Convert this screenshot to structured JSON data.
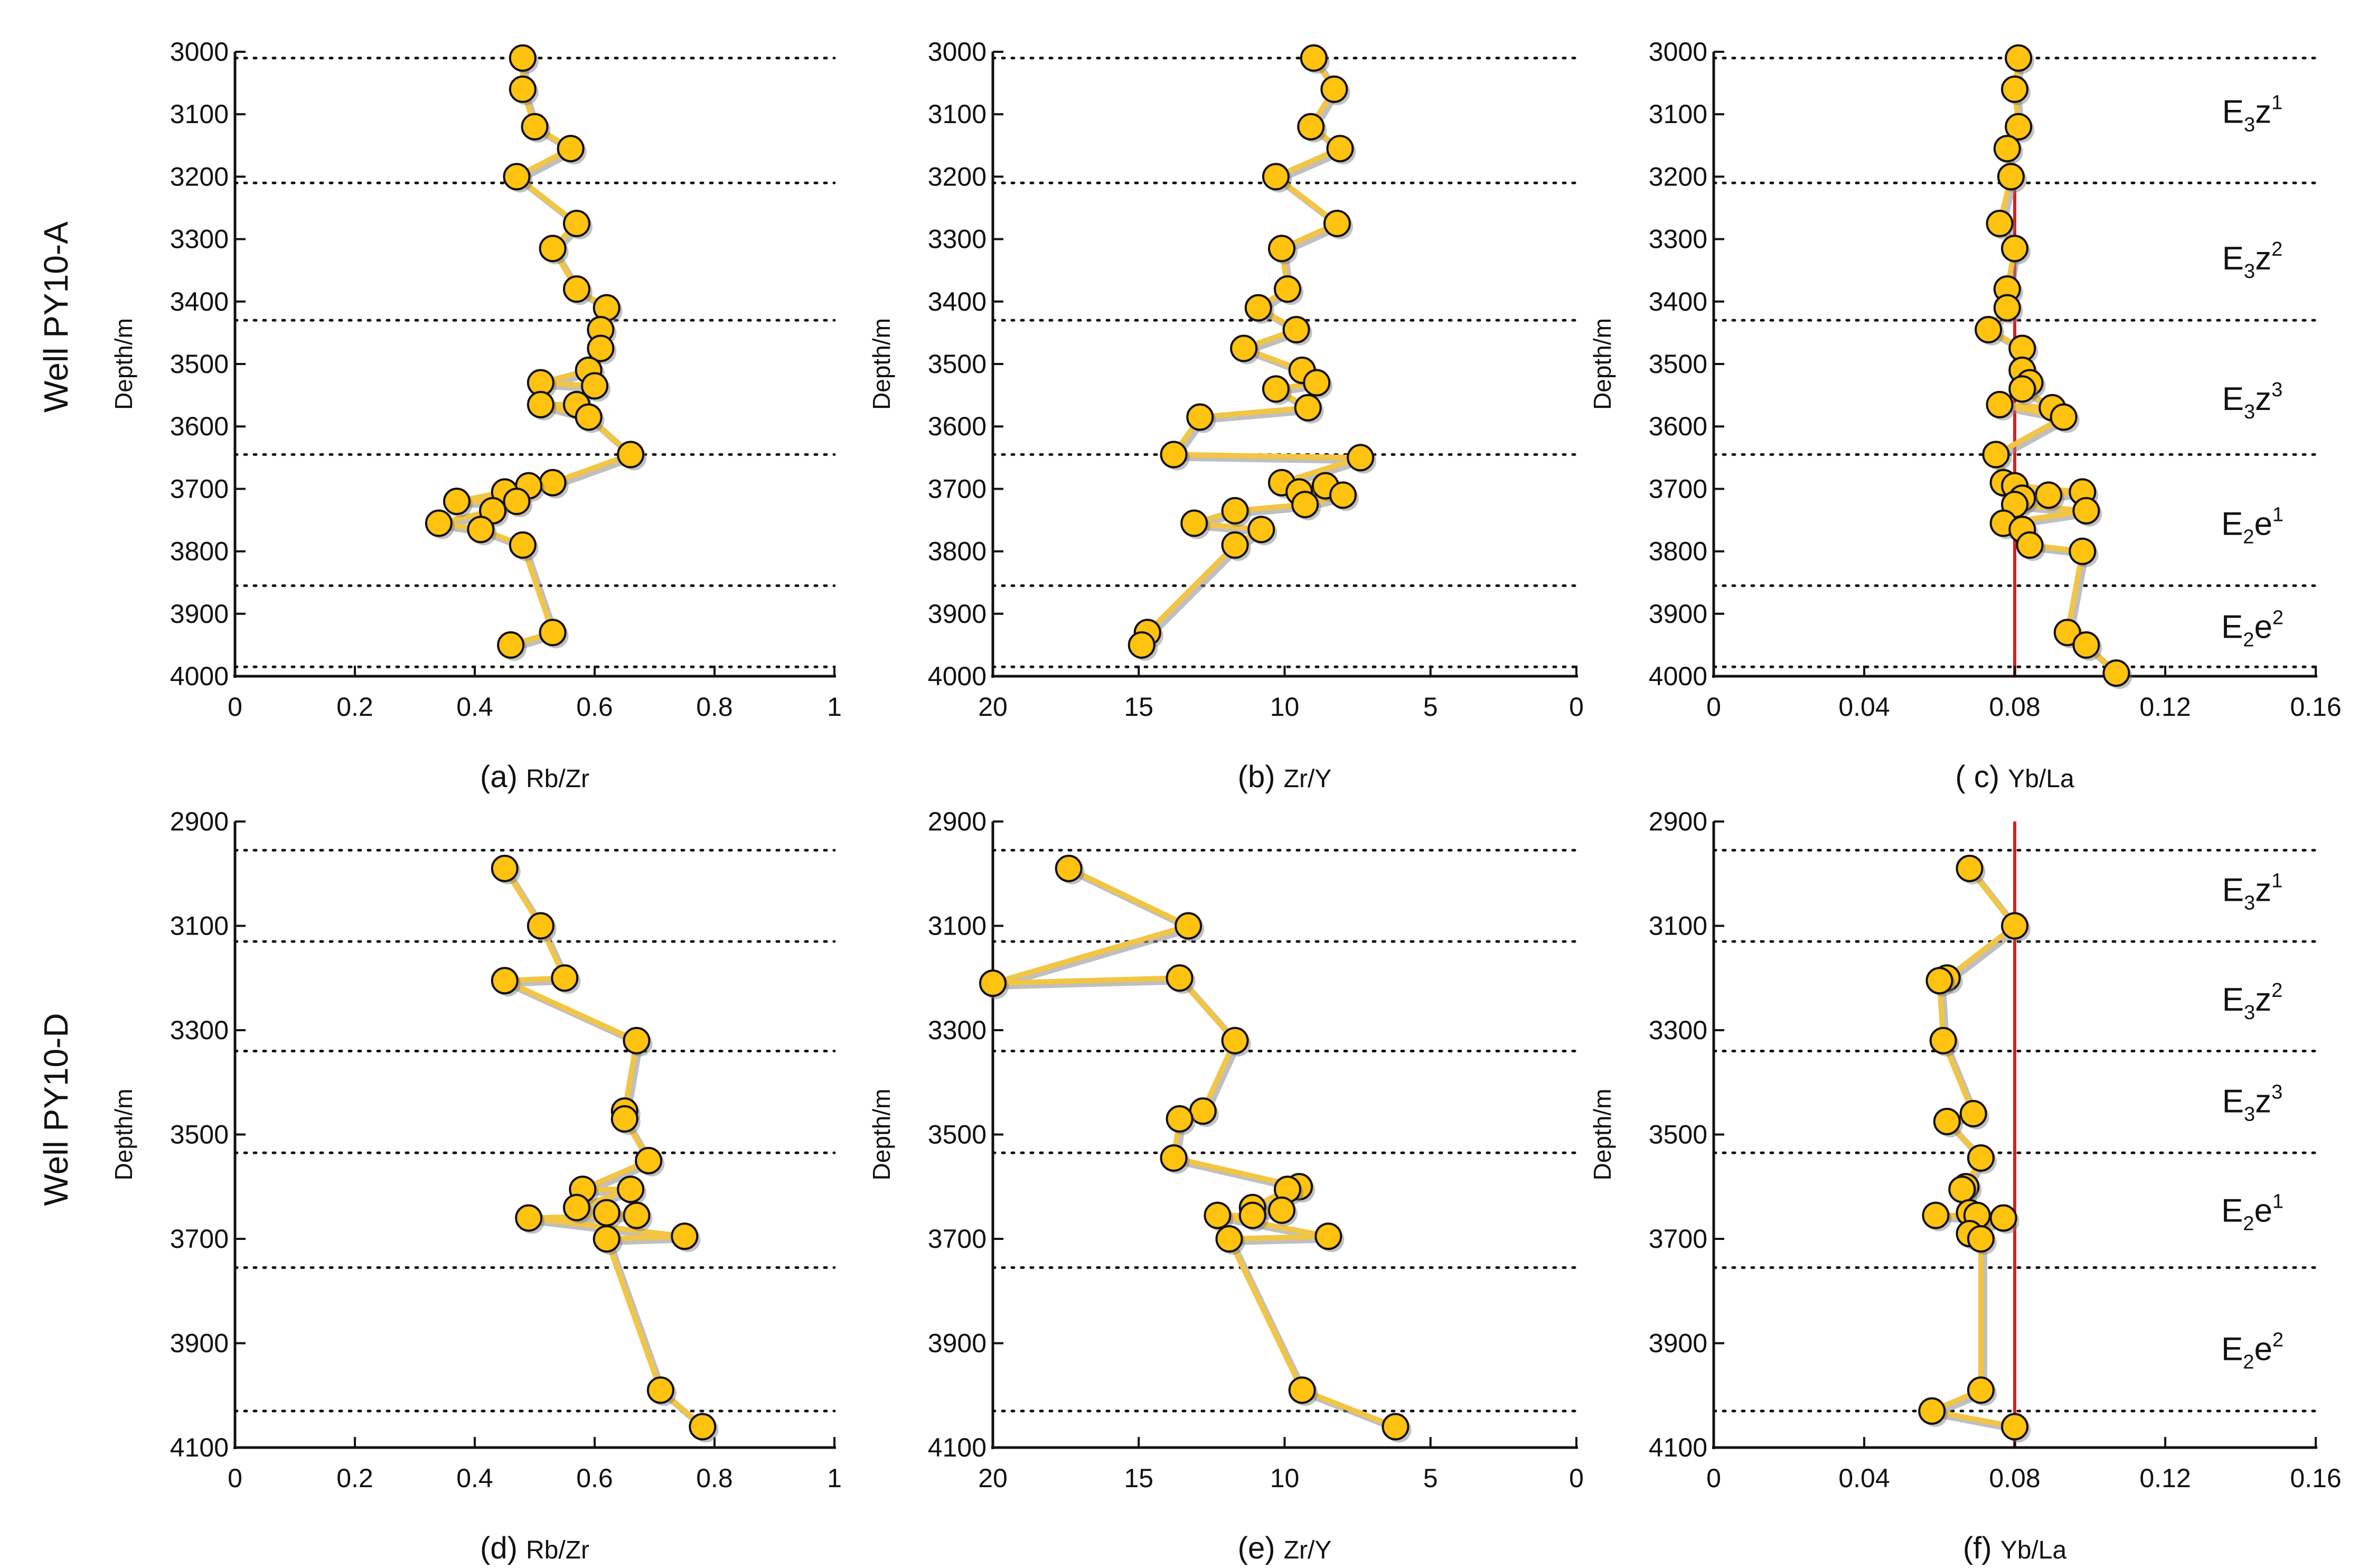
{
  "colors": {
    "marker_fill": "#FFC20E",
    "marker_stroke": "#111111",
    "line": "#F2C542",
    "line_shadow": "#8A8A8A",
    "reference_line": "#D32222",
    "boundary": "#111111"
  },
  "rows": [
    {
      "well_label": "Well PY10-A",
      "ylabel": "Depth/m",
      "ylim": [
        3000,
        4000
      ],
      "yticks": [
        3000,
        3100,
        3200,
        3300,
        3400,
        3500,
        3600,
        3700,
        3800,
        3900,
        4000
      ]
    },
    {
      "well_label": "Well PY10-D",
      "ylabel": "Depth/m",
      "ylim": [
        2900,
        4100
      ],
      "yticks": [
        2900,
        3100,
        3300,
        3500,
        3700,
        3900,
        4100
      ]
    }
  ],
  "zone_labels": {
    "E3z1": {
      "base": "E",
      "sub": "3",
      "letter": "z",
      "sup": "1"
    },
    "E3z2": {
      "base": "E",
      "sub": "3",
      "letter": "z",
      "sup": "2"
    },
    "E3z3": {
      "base": "E",
      "sub": "3",
      "letter": "z",
      "sup": "3"
    },
    "E2e1": {
      "base": "E",
      "sub": "2",
      "letter": "e",
      "sup": "1"
    },
    "E2e2": {
      "base": "E",
      "sub": "2",
      "letter": "e",
      "sup": "2"
    }
  },
  "chart_data": [
    {
      "id": "a",
      "type": "line",
      "well": "PY10-A",
      "letter": "(a)",
      "xlabel": "Rb/Zr",
      "ylabel": "Depth/m",
      "xlim": [
        0,
        1
      ],
      "xticks": [
        0,
        0.2,
        0.4,
        0.6,
        0.8,
        1
      ],
      "xtick_labels": [
        "0",
        "0.2",
        "0.4",
        "0.6",
        "0.8",
        "1"
      ],
      "x_reversed": false,
      "ylim": [
        3000,
        4000
      ],
      "yticks": [
        3000,
        3100,
        3200,
        3300,
        3400,
        3500,
        3600,
        3700,
        3800,
        3900,
        4000
      ],
      "zone_boundaries": [
        3010,
        3210,
        3430,
        3645,
        3855,
        3985
      ],
      "reference_x": null,
      "zones": [],
      "points": [
        {
          "x": 0.48,
          "y": 3010
        },
        {
          "x": 0.48,
          "y": 3060
        },
        {
          "x": 0.5,
          "y": 3120
        },
        {
          "x": 0.56,
          "y": 3155
        },
        {
          "x": 0.47,
          "y": 3200
        },
        {
          "x": 0.57,
          "y": 3275
        },
        {
          "x": 0.53,
          "y": 3315
        },
        {
          "x": 0.57,
          "y": 3380
        },
        {
          "x": 0.62,
          "y": 3410
        },
        {
          "x": 0.61,
          "y": 3445
        },
        {
          "x": 0.61,
          "y": 3475
        },
        {
          "x": 0.59,
          "y": 3510
        },
        {
          "x": 0.51,
          "y": 3530
        },
        {
          "x": 0.6,
          "y": 3535
        },
        {
          "x": 0.57,
          "y": 3565
        },
        {
          "x": 0.51,
          "y": 3565
        },
        {
          "x": 0.59,
          "y": 3585
        },
        {
          "x": 0.66,
          "y": 3645
        },
        {
          "x": 0.53,
          "y": 3690
        },
        {
          "x": 0.49,
          "y": 3695
        },
        {
          "x": 0.45,
          "y": 3705
        },
        {
          "x": 0.37,
          "y": 3720
        },
        {
          "x": 0.47,
          "y": 3720
        },
        {
          "x": 0.43,
          "y": 3735
        },
        {
          "x": 0.34,
          "y": 3755
        },
        {
          "x": 0.41,
          "y": 3765
        },
        {
          "x": 0.48,
          "y": 3790
        },
        {
          "x": 0.53,
          "y": 3930
        },
        {
          "x": 0.46,
          "y": 3950
        }
      ]
    },
    {
      "id": "b",
      "type": "line",
      "well": "PY10-A",
      "letter": "(b)",
      "xlabel": "Zr/Y",
      "ylabel": "Depth/m",
      "xlim": [
        20,
        0
      ],
      "xticks": [
        20,
        15,
        10,
        5,
        0
      ],
      "xtick_labels": [
        "20",
        "15",
        "10",
        "5",
        "0"
      ],
      "x_reversed": true,
      "ylim": [
        3000,
        4000
      ],
      "yticks": [
        3000,
        3100,
        3200,
        3300,
        3400,
        3500,
        3600,
        3700,
        3800,
        3900,
        4000
      ],
      "zone_boundaries": [
        3010,
        3210,
        3430,
        3645,
        3855,
        3985
      ],
      "reference_x": null,
      "zones": [],
      "points": [
        {
          "x": 9.0,
          "y": 3010
        },
        {
          "x": 8.3,
          "y": 3060
        },
        {
          "x": 9.1,
          "y": 3120
        },
        {
          "x": 8.1,
          "y": 3155
        },
        {
          "x": 10.3,
          "y": 3200
        },
        {
          "x": 8.2,
          "y": 3275
        },
        {
          "x": 10.1,
          "y": 3315
        },
        {
          "x": 9.9,
          "y": 3380
        },
        {
          "x": 10.9,
          "y": 3410
        },
        {
          "x": 9.6,
          "y": 3445
        },
        {
          "x": 11.4,
          "y": 3475
        },
        {
          "x": 9.4,
          "y": 3510
        },
        {
          "x": 8.9,
          "y": 3530
        },
        {
          "x": 10.3,
          "y": 3540
        },
        {
          "x": 9.2,
          "y": 3570
        },
        {
          "x": 12.9,
          "y": 3585
        },
        {
          "x": 13.8,
          "y": 3645
        },
        {
          "x": 7.4,
          "y": 3650
        },
        {
          "x": 10.1,
          "y": 3690
        },
        {
          "x": 8.6,
          "y": 3695
        },
        {
          "x": 9.5,
          "y": 3705
        },
        {
          "x": 8.0,
          "y": 3710
        },
        {
          "x": 9.3,
          "y": 3725
        },
        {
          "x": 11.7,
          "y": 3735
        },
        {
          "x": 13.1,
          "y": 3755
        },
        {
          "x": 10.8,
          "y": 3765
        },
        {
          "x": 11.7,
          "y": 3790
        },
        {
          "x": 14.7,
          "y": 3930
        },
        {
          "x": 14.9,
          "y": 3950
        }
      ]
    },
    {
      "id": "c",
      "type": "line",
      "well": "PY10-A",
      "letter": "( c)",
      "xlabel": "Yb/La",
      "ylabel": "Depth/m",
      "xlim": [
        0,
        0.16
      ],
      "xticks": [
        0,
        0.04,
        0.08,
        0.12,
        0.16
      ],
      "xtick_labels": [
        "0",
        "0.04",
        "0.08",
        "0.12",
        "0.16"
      ],
      "x_reversed": false,
      "ylim": [
        3000,
        4000
      ],
      "yticks": [
        3000,
        3100,
        3200,
        3300,
        3400,
        3500,
        3600,
        3700,
        3800,
        3900,
        4000
      ],
      "zone_boundaries": [
        3010,
        3210,
        3430,
        3645,
        3855,
        3985
      ],
      "reference_x": 0.08,
      "reference_depth_range": [
        3210,
        4000
      ],
      "zones": [
        {
          "key": "E3z1",
          "depth": 3095
        },
        {
          "key": "E3z2",
          "depth": 3330
        },
        {
          "key": "E3z3",
          "depth": 3555
        },
        {
          "key": "E2e1",
          "depth": 3755
        },
        {
          "key": "E2e2",
          "depth": 3920
        }
      ],
      "points": [
        {
          "x": 0.081,
          "y": 3010
        },
        {
          "x": 0.08,
          "y": 3060
        },
        {
          "x": 0.081,
          "y": 3120
        },
        {
          "x": 0.078,
          "y": 3155
        },
        {
          "x": 0.079,
          "y": 3200
        },
        {
          "x": 0.076,
          "y": 3275
        },
        {
          "x": 0.08,
          "y": 3315
        },
        {
          "x": 0.078,
          "y": 3380
        },
        {
          "x": 0.078,
          "y": 3410
        },
        {
          "x": 0.073,
          "y": 3445
        },
        {
          "x": 0.082,
          "y": 3475
        },
        {
          "x": 0.082,
          "y": 3510
        },
        {
          "x": 0.084,
          "y": 3530
        },
        {
          "x": 0.082,
          "y": 3540
        },
        {
          "x": 0.09,
          "y": 3570
        },
        {
          "x": 0.076,
          "y": 3565
        },
        {
          "x": 0.093,
          "y": 3585
        },
        {
          "x": 0.075,
          "y": 3645
        },
        {
          "x": 0.077,
          "y": 3690
        },
        {
          "x": 0.08,
          "y": 3695
        },
        {
          "x": 0.098,
          "y": 3705
        },
        {
          "x": 0.089,
          "y": 3710
        },
        {
          "x": 0.082,
          "y": 3715
        },
        {
          "x": 0.08,
          "y": 3725
        },
        {
          "x": 0.099,
          "y": 3735
        },
        {
          "x": 0.077,
          "y": 3755
        },
        {
          "x": 0.082,
          "y": 3765
        },
        {
          "x": 0.084,
          "y": 3790
        },
        {
          "x": 0.098,
          "y": 3800
        },
        {
          "x": 0.094,
          "y": 3930
        },
        {
          "x": 0.099,
          "y": 3950
        },
        {
          "x": 0.107,
          "y": 3995
        }
      ]
    },
    {
      "id": "d",
      "type": "line",
      "well": "PY10-D",
      "letter": "(d)",
      "xlabel": "Rb/Zr",
      "ylabel": "Depth/m",
      "xlim": [
        0,
        1
      ],
      "xticks": [
        0,
        0.2,
        0.4,
        0.6,
        0.8,
        1
      ],
      "xtick_labels": [
        "0",
        "0.2",
        "0.4",
        "0.6",
        "0.8",
        "1"
      ],
      "x_reversed": false,
      "ylim": [
        2900,
        4100
      ],
      "yticks": [
        2900,
        3100,
        3300,
        3500,
        3700,
        3900,
        4100
      ],
      "zone_boundaries": [
        2955,
        3130,
        3340,
        3535,
        3755,
        4030
      ],
      "reference_x": null,
      "zones": [],
      "points": [
        {
          "x": 0.45,
          "y": 2990
        },
        {
          "x": 0.51,
          "y": 3100
        },
        {
          "x": 0.55,
          "y": 3200
        },
        {
          "x": 0.45,
          "y": 3205
        },
        {
          "x": 0.67,
          "y": 3320
        },
        {
          "x": 0.65,
          "y": 3455
        },
        {
          "x": 0.65,
          "y": 3470
        },
        {
          "x": 0.69,
          "y": 3550
        },
        {
          "x": 0.58,
          "y": 3605
        },
        {
          "x": 0.66,
          "y": 3605
        },
        {
          "x": 0.57,
          "y": 3640
        },
        {
          "x": 0.62,
          "y": 3650
        },
        {
          "x": 0.67,
          "y": 3655
        },
        {
          "x": 0.49,
          "y": 3660
        },
        {
          "x": 0.75,
          "y": 3695
        },
        {
          "x": 0.62,
          "y": 3700
        },
        {
          "x": 0.71,
          "y": 3990
        },
        {
          "x": 0.78,
          "y": 4060
        }
      ]
    },
    {
      "id": "e",
      "type": "line",
      "well": "PY10-D",
      "letter": "(e)",
      "xlabel": "Zr/Y",
      "ylabel": "Depth/m",
      "xlim": [
        20,
        0
      ],
      "xticks": [
        20,
        15,
        10,
        5,
        0
      ],
      "xtick_labels": [
        "20",
        "15",
        "10",
        "5",
        "0"
      ],
      "x_reversed": true,
      "ylim": [
        2900,
        4100
      ],
      "yticks": [
        2900,
        3100,
        3300,
        3500,
        3700,
        3900,
        4100
      ],
      "zone_boundaries": [
        2955,
        3130,
        3340,
        3535,
        3755,
        4030
      ],
      "reference_x": null,
      "zones": [],
      "points": [
        {
          "x": 17.4,
          "y": 2990
        },
        {
          "x": 13.3,
          "y": 3100
        },
        {
          "x": 20.0,
          "y": 3210
        },
        {
          "x": 13.6,
          "y": 3200
        },
        {
          "x": 11.7,
          "y": 3320
        },
        {
          "x": 12.8,
          "y": 3455
        },
        {
          "x": 13.6,
          "y": 3470
        },
        {
          "x": 13.8,
          "y": 3545
        },
        {
          "x": 9.5,
          "y": 3600
        },
        {
          "x": 9.9,
          "y": 3605
        },
        {
          "x": 11.1,
          "y": 3640
        },
        {
          "x": 10.1,
          "y": 3645
        },
        {
          "x": 11.1,
          "y": 3655
        },
        {
          "x": 12.3,
          "y": 3655
        },
        {
          "x": 8.5,
          "y": 3695
        },
        {
          "x": 11.9,
          "y": 3700
        },
        {
          "x": 9.4,
          "y": 3990
        },
        {
          "x": 6.2,
          "y": 4060
        }
      ]
    },
    {
      "id": "f",
      "type": "line",
      "well": "PY10-D",
      "letter": "(f)",
      "xlabel": "Yb/La",
      "ylabel": "Depth/m",
      "xlim": [
        0,
        0.16
      ],
      "xticks": [
        0,
        0.04,
        0.08,
        0.12,
        0.16
      ],
      "xtick_labels": [
        "0",
        "0.04",
        "0.08",
        "0.12",
        "0.16"
      ],
      "x_reversed": false,
      "ylim": [
        2900,
        4100
      ],
      "yticks": [
        2900,
        3100,
        3300,
        3500,
        3700,
        3900,
        4100
      ],
      "zone_boundaries": [
        2955,
        3130,
        3340,
        3535,
        3755,
        4030
      ],
      "reference_x": 0.08,
      "reference_depth_range": [
        2900,
        4100
      ],
      "zones": [
        {
          "key": "E3z1",
          "depth": 3030
        },
        {
          "key": "E3z2",
          "depth": 3240
        },
        {
          "key": "E3z3",
          "depth": 3435
        },
        {
          "key": "E2e1",
          "depth": 3645
        },
        {
          "key": "E2e2",
          "depth": 3910
        }
      ],
      "points": [
        {
          "x": 0.068,
          "y": 2990
        },
        {
          "x": 0.08,
          "y": 3100
        },
        {
          "x": 0.062,
          "y": 3200
        },
        {
          "x": 0.06,
          "y": 3205
        },
        {
          "x": 0.061,
          "y": 3320
        },
        {
          "x": 0.069,
          "y": 3460
        },
        {
          "x": 0.062,
          "y": 3475
        },
        {
          "x": 0.071,
          "y": 3545
        },
        {
          "x": 0.067,
          "y": 3600
        },
        {
          "x": 0.066,
          "y": 3605
        },
        {
          "x": 0.068,
          "y": 3650
        },
        {
          "x": 0.07,
          "y": 3655
        },
        {
          "x": 0.059,
          "y": 3655
        },
        {
          "x": 0.077,
          "y": 3660
        },
        {
          "x": 0.068,
          "y": 3690
        },
        {
          "x": 0.071,
          "y": 3700
        },
        {
          "x": 0.071,
          "y": 3990
        },
        {
          "x": 0.058,
          "y": 4030
        },
        {
          "x": 0.08,
          "y": 4060
        }
      ]
    }
  ]
}
